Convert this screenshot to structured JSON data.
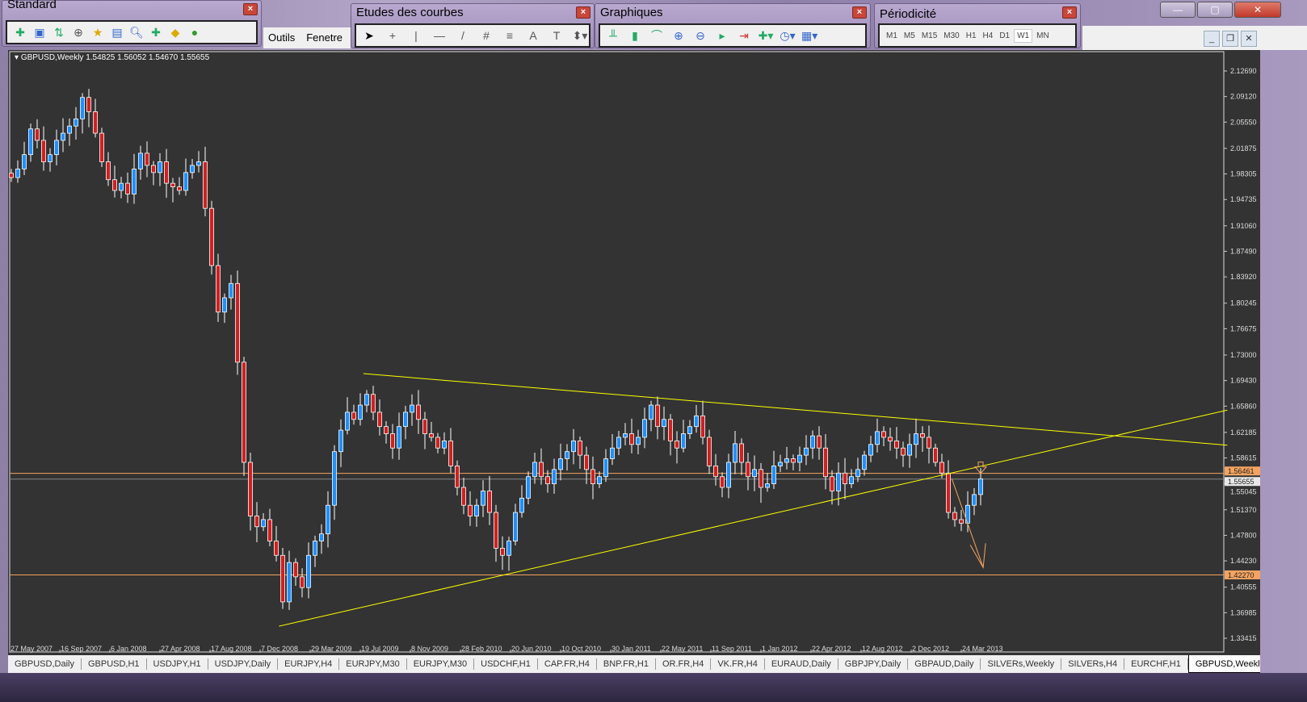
{
  "toolbars": {
    "standard": {
      "title": "Standard"
    },
    "studies": {
      "title": "Etudes des courbes"
    },
    "charts": {
      "title": "Graphiques"
    },
    "periods": {
      "title": "Périodicité",
      "items": [
        "M1",
        "M5",
        "M15",
        "M30",
        "H1",
        "H4",
        "D1",
        "W1",
        "MN"
      ],
      "active": "W1"
    }
  },
  "menu": {
    "items": [
      "Outils",
      "Fenetre"
    ]
  },
  "chart": {
    "header": "GBPUSD,Weekly  1.54825 1.56052 1.54670 1.55655"
  },
  "tabs": {
    "items": [
      "GBPUSD,Daily",
      "GBPUSD,H1",
      "USDJPY,H1",
      "USDJPY,Daily",
      "EURJPY,H4",
      "EURJPY,M30",
      "EURJPY,M30",
      "USDCHF,H1",
      "CAP.FR,H4",
      "BNP.FR,H1",
      "OR.FR,H4",
      "VK.FR,H4",
      "EURAUD,Daily",
      "GBPJPY,Daily",
      "GBPAUD,Daily",
      "SILVERs,Weekly",
      "SILVERs,H4",
      "EURCHF,H1",
      "GBPUSD,Weekly"
    ],
    "active": "GBPUSD,Weekly"
  },
  "chart_data": {
    "type": "candlestick",
    "symbol": "GBPUSD",
    "timeframe": "Weekly",
    "ylim": [
      1.33415,
      2.1269
    ],
    "y_ticks": [
      "2.12690",
      "2.09120",
      "2.05550",
      "2.01875",
      "1.98305",
      "1.94735",
      "1.91060",
      "1.87490",
      "1.83920",
      "1.80245",
      "1.76675",
      "1.73000",
      "1.69430",
      "1.65860",
      "1.62185",
      "1.58615",
      "1.55045",
      "1.51370",
      "1.47800",
      "1.44230",
      "1.40555",
      "1.36985",
      "1.33415"
    ],
    "x_ticks": [
      "27 May 2007",
      "16 Sep 2007",
      "6 Jan 2008",
      "27 Apr 2008",
      "17 Aug 2008",
      "7 Dec 2008",
      "29 Mar 2009",
      "19 Jul 2009",
      "8 Nov 2009",
      "28 Feb 2010",
      "20 Jun 2010",
      "10 Oct 2010",
      "30 Jan 2011",
      "22 May 2011",
      "11 Sep 2011",
      "1 Jan 2012",
      "22 Apr 2012",
      "12 Aug 2012",
      "2 Dec 2012",
      "24 Mar 2013"
    ],
    "closes": [
      1.978,
      1.99,
      2.01,
      2.046,
      2.03,
      2.0,
      2.01,
      2.03,
      2.04,
      2.05,
      2.06,
      2.09,
      2.07,
      2.04,
      2.0,
      1.975,
      1.96,
      1.97,
      1.955,
      1.99,
      2.012,
      1.995,
      1.985,
      2.0,
      1.97,
      1.965,
      1.96,
      1.985,
      1.995,
      2.0,
      1.935,
      1.855,
      1.79,
      1.81,
      1.83,
      1.72,
      1.58,
      1.505,
      1.49,
      1.5,
      1.47,
      1.45,
      1.385,
      1.44,
      1.42,
      1.405,
      1.45,
      1.47,
      1.48,
      1.52,
      1.595,
      1.625,
      1.65,
      1.64,
      1.66,
      1.675,
      1.65,
      1.63,
      1.62,
      1.6,
      1.63,
      1.65,
      1.66,
      1.64,
      1.62,
      1.615,
      1.6,
      1.61,
      1.575,
      1.545,
      1.52,
      1.505,
      1.52,
      1.54,
      1.51,
      1.46,
      1.45,
      1.47,
      1.51,
      1.53,
      1.56,
      1.58,
      1.56,
      1.55,
      1.57,
      1.585,
      1.595,
      1.61,
      1.59,
      1.57,
      1.55,
      1.56,
      1.585,
      1.6,
      1.615,
      1.62,
      1.605,
      1.615,
      1.64,
      1.66,
      1.63,
      1.64,
      1.61,
      1.6,
      1.62,
      1.63,
      1.645,
      1.615,
      1.575,
      1.56,
      1.545,
      1.58,
      1.606,
      1.58,
      1.56,
      1.57,
      1.545,
      1.55,
      1.575,
      1.58,
      1.585,
      1.58,
      1.59,
      1.6,
      1.617,
      1.6,
      1.56,
      1.54,
      1.565,
      1.55,
      1.56,
      1.57,
      1.59,
      1.605,
      1.623,
      1.615,
      1.61,
      1.6,
      1.59,
      1.605,
      1.62,
      1.615,
      1.6,
      1.58,
      1.565,
      1.51,
      1.5,
      1.495,
      1.52,
      1.535,
      1.557
    ],
    "last_price": "1.55655",
    "price_levels": [
      {
        "price": 1.56461,
        "label": "1.56461",
        "color": "#f4a460"
      },
      {
        "price": 1.55655,
        "label": "1.55655",
        "color": "#888888"
      },
      {
        "price": 1.4227,
        "label": "1.42270",
        "color": "#f4a460"
      }
    ],
    "trendlines": [
      {
        "from": {
          "date": "2009-07-26",
          "price": 1.704
        },
        "to": {
          "date": "2014-11-09",
          "price": 1.604
        },
        "color": "#ffff00"
      },
      {
        "from": {
          "date": "2009-01-18",
          "price": 1.351
        },
        "to": {
          "date": "2014-11-09",
          "price": 1.653
        },
        "color": "#ffff00"
      }
    ],
    "arrow": {
      "from": {
        "date": "2013-03-03",
        "price": 1.557
      },
      "to": {
        "date": "2013-05-12",
        "price": 1.433
      },
      "color": "#f4a460"
    },
    "colors": {
      "background": "#333333",
      "bull": "#1e90ff",
      "bear": "#d02020",
      "outline": "#ffffff",
      "axis_text": "#ffffff"
    }
  }
}
